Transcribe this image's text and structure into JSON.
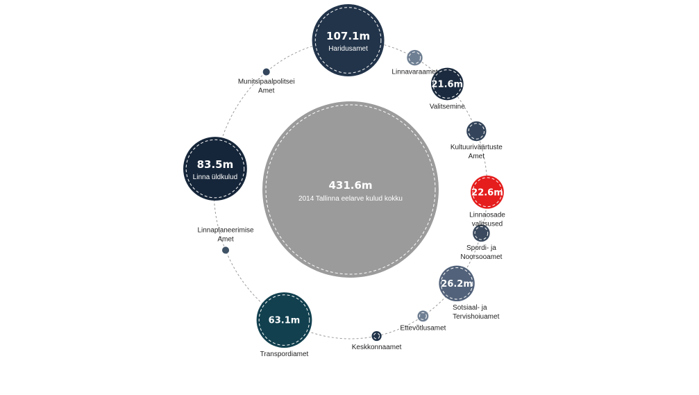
{
  "chart_data": {
    "type": "bubble",
    "unit": "m",
    "total": {
      "value_label": "431.6m",
      "label": "2014 Tallinna eelarve kulud kokku",
      "value": 431.6,
      "color": "#9b9b9b"
    },
    "items": [
      {
        "name": "Haridusamet",
        "value": 107.1,
        "value_label": "107.1m",
        "color": "#22344a"
      },
      {
        "name": "Linnavaraamet",
        "value": 5.0,
        "color": "#6f7f93"
      },
      {
        "name": "Valitsemine",
        "value": 21.6,
        "value_label": "21.6m",
        "color": "#1b2a3e"
      },
      {
        "name": "Kultuuriväärtuste Amet",
        "value": 8.0,
        "color": "#34455b"
      },
      {
        "name": "Linnaosade valitsused",
        "value": 22.6,
        "value_label": "22.6m",
        "color": "#e51d1d"
      },
      {
        "name": "Spordi- ja Noorsooamet",
        "value": 6.0,
        "color": "#3b4a5e"
      },
      {
        "name": "Sotsiaal- ja Tervishoiuamet",
        "value": 26.2,
        "value_label": "26.2m",
        "color": "#52627a"
      },
      {
        "name": "Ettevõtlusamet",
        "value": 2.5,
        "color": "#6f7f93"
      },
      {
        "name": "Keskkonnaamet",
        "value": 2.0,
        "color": "#22344a"
      },
      {
        "name": "Transpordiamet",
        "value": 63.1,
        "value_label": "63.1m",
        "color": "#12404f"
      },
      {
        "name": "Linnaplaneerimise Amet",
        "value": 1.0,
        "color": "#3f5266"
      },
      {
        "name": "Linna üldkulud",
        "value": 83.5,
        "value_label": "83.5m",
        "color": "#16263a"
      },
      {
        "name": "Munitsipaalpolitsei Amet",
        "value": 1.0,
        "color": "#33465c"
      }
    ]
  }
}
